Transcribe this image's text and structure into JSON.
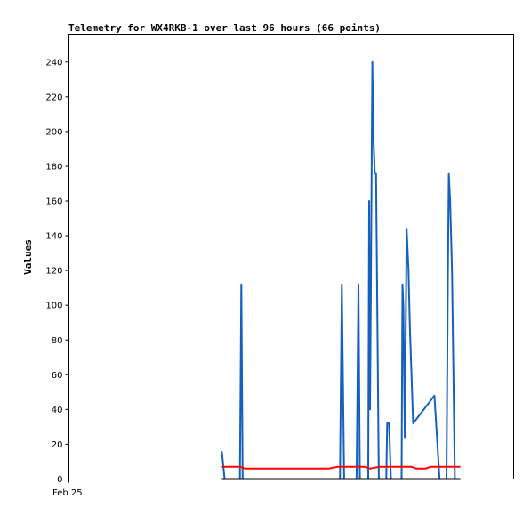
{
  "chart_data": {
    "type": "line",
    "title": "Telemetry for WX4RKB-1 over last 96 hours (66 points)",
    "ylabel": "Values",
    "xlabel": "",
    "x_tick_labels": [
      "Feb 25"
    ],
    "ylim": [
      0,
      256
    ],
    "yticks": [
      0,
      20,
      40,
      60,
      80,
      100,
      120,
      140,
      160,
      180,
      200,
      220,
      240
    ],
    "xlim": [
      0,
      96
    ],
    "grid": false,
    "series": [
      {
        "color": "#1560bd",
        "points": [
          [
            33.0,
            16
          ],
          [
            33.6,
            0
          ],
          [
            36.9,
            0
          ],
          [
            37.2,
            112
          ],
          [
            37.5,
            0
          ],
          [
            58.5,
            0
          ],
          [
            58.9,
            112
          ],
          [
            59.4,
            0
          ],
          [
            62.1,
            0
          ],
          [
            62.5,
            112
          ],
          [
            62.8,
            0
          ],
          [
            64.6,
            0
          ],
          [
            64.8,
            160
          ],
          [
            65.0,
            40
          ],
          [
            65.2,
            120
          ],
          [
            65.5,
            240
          ],
          [
            65.7,
            200
          ],
          [
            66.0,
            176
          ],
          [
            66.3,
            176
          ],
          [
            66.9,
            0
          ],
          [
            68.5,
            0
          ],
          [
            68.7,
            32
          ],
          [
            69.1,
            32
          ],
          [
            69.5,
            0
          ],
          [
            71.8,
            0
          ],
          [
            72.0,
            112
          ],
          [
            72.2,
            100
          ],
          [
            72.5,
            24
          ],
          [
            72.9,
            144
          ],
          [
            73.3,
            120
          ],
          [
            73.6,
            88
          ],
          [
            74.3,
            32
          ],
          [
            78.9,
            48
          ],
          [
            80.0,
            0
          ],
          [
            81.5,
            0
          ],
          [
            81.8,
            112
          ],
          [
            82.0,
            176
          ],
          [
            82.3,
            160
          ],
          [
            82.7,
            120
          ],
          [
            83.3,
            0
          ],
          [
            84.5,
            0
          ]
        ]
      },
      {
        "color": "#ff0000",
        "points": [
          [
            33.0,
            7
          ],
          [
            37.0,
            7
          ],
          [
            38.0,
            6
          ],
          [
            56.0,
            6
          ],
          [
            58.0,
            7
          ],
          [
            64.0,
            7
          ],
          [
            65.0,
            6
          ],
          [
            67.0,
            7
          ],
          [
            74.0,
            7
          ],
          [
            75.0,
            6
          ],
          [
            77.0,
            6
          ],
          [
            78.0,
            7
          ],
          [
            84.5,
            7
          ]
        ]
      },
      {
        "color": "#000000",
        "points": [
          [
            33.0,
            0
          ],
          [
            84.5,
            0
          ]
        ]
      }
    ]
  }
}
